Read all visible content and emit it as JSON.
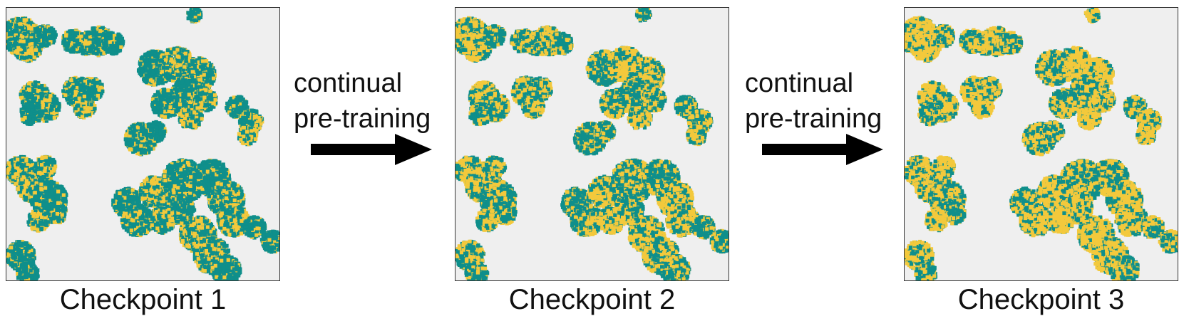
{
  "colors": {
    "background": "#efefef",
    "teal": "#0f8f8b",
    "yellow": "#f3c93c",
    "arrow": "#000000"
  },
  "arrow_label": {
    "line1": "continual",
    "line2": "pre-training"
  },
  "panels": [
    {
      "caption": "Checkpoint 1",
      "yellow_fraction": 0.3
    },
    {
      "caption": "Checkpoint 2",
      "yellow_fraction": 0.45
    },
    {
      "caption": "Checkpoint 3",
      "yellow_fraction": 0.6
    }
  ]
}
